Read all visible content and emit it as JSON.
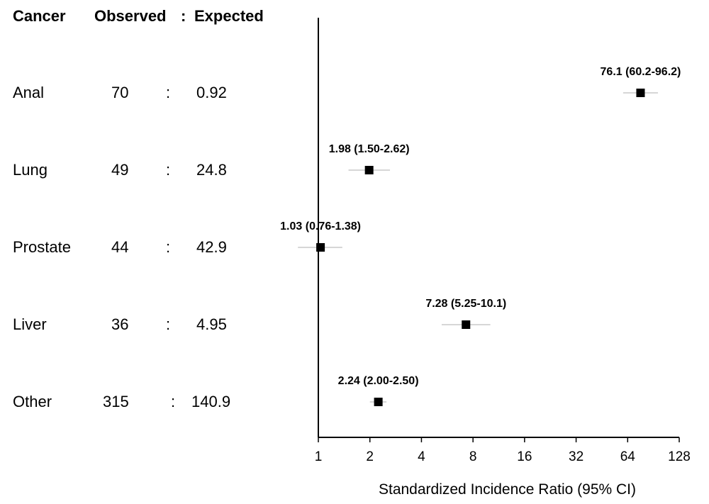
{
  "headers": {
    "cancer": "Cancer",
    "observed": "Observed",
    "sep": ":",
    "expected": "Expected"
  },
  "rows": [
    {
      "cancer": "Anal",
      "observed": "70",
      "sep": ":",
      "expected": "0.92"
    },
    {
      "cancer": "Lung",
      "observed": "49",
      "sep": ":",
      "expected": "24.8"
    },
    {
      "cancer": "Prostate",
      "observed": "44",
      "sep": ":",
      "expected": "42.9"
    },
    {
      "cancer": "Liver",
      "observed": "36",
      "sep": ":",
      "expected": "4.95"
    },
    {
      "cancer": "Other",
      "observed": "315",
      "sep": ":",
      "expected": "140.9"
    }
  ],
  "chart_data": {
    "type": "scatter",
    "scale": "log2",
    "xlabel": "Standardized Incidence Ratio (95% CI)",
    "xlim": [
      1,
      128
    ],
    "xticks": [
      1,
      2,
      4,
      8,
      16,
      32,
      64,
      128
    ],
    "xtick_labels": [
      "1",
      "2",
      "4",
      "8",
      "16",
      "32",
      "64",
      "128"
    ],
    "reference_line": 1,
    "categories": [
      "Anal",
      "Lung",
      "Prostate",
      "Liver",
      "Other"
    ],
    "points": [
      {
        "category": "Anal",
        "estimate": 76.1,
        "ci_low": 60.2,
        "ci_high": 96.2,
        "label": "76.1 (60.2-96.2)",
        "label_side": "above"
      },
      {
        "category": "Lung",
        "estimate": 1.98,
        "ci_low": 1.5,
        "ci_high": 2.62,
        "label": "1.98 (1.50-2.62)",
        "label_side": "above"
      },
      {
        "category": "Prostate",
        "estimate": 1.03,
        "ci_low": 0.76,
        "ci_high": 1.38,
        "label": "1.03 (0.76-1.38)",
        "label_side": "above"
      },
      {
        "category": "Liver",
        "estimate": 7.28,
        "ci_low": 5.25,
        "ci_high": 10.1,
        "label": "7.28 (5.25-10.1)",
        "label_side": "above"
      },
      {
        "category": "Other",
        "estimate": 2.24,
        "ci_low": 2.0,
        "ci_high": 2.5,
        "label": "2.24 (2.00-2.50)",
        "label_side": "above"
      }
    ],
    "colors": {
      "marker": "#000000",
      "ci_line": "#c8c8c8",
      "axis": "#000000"
    }
  }
}
